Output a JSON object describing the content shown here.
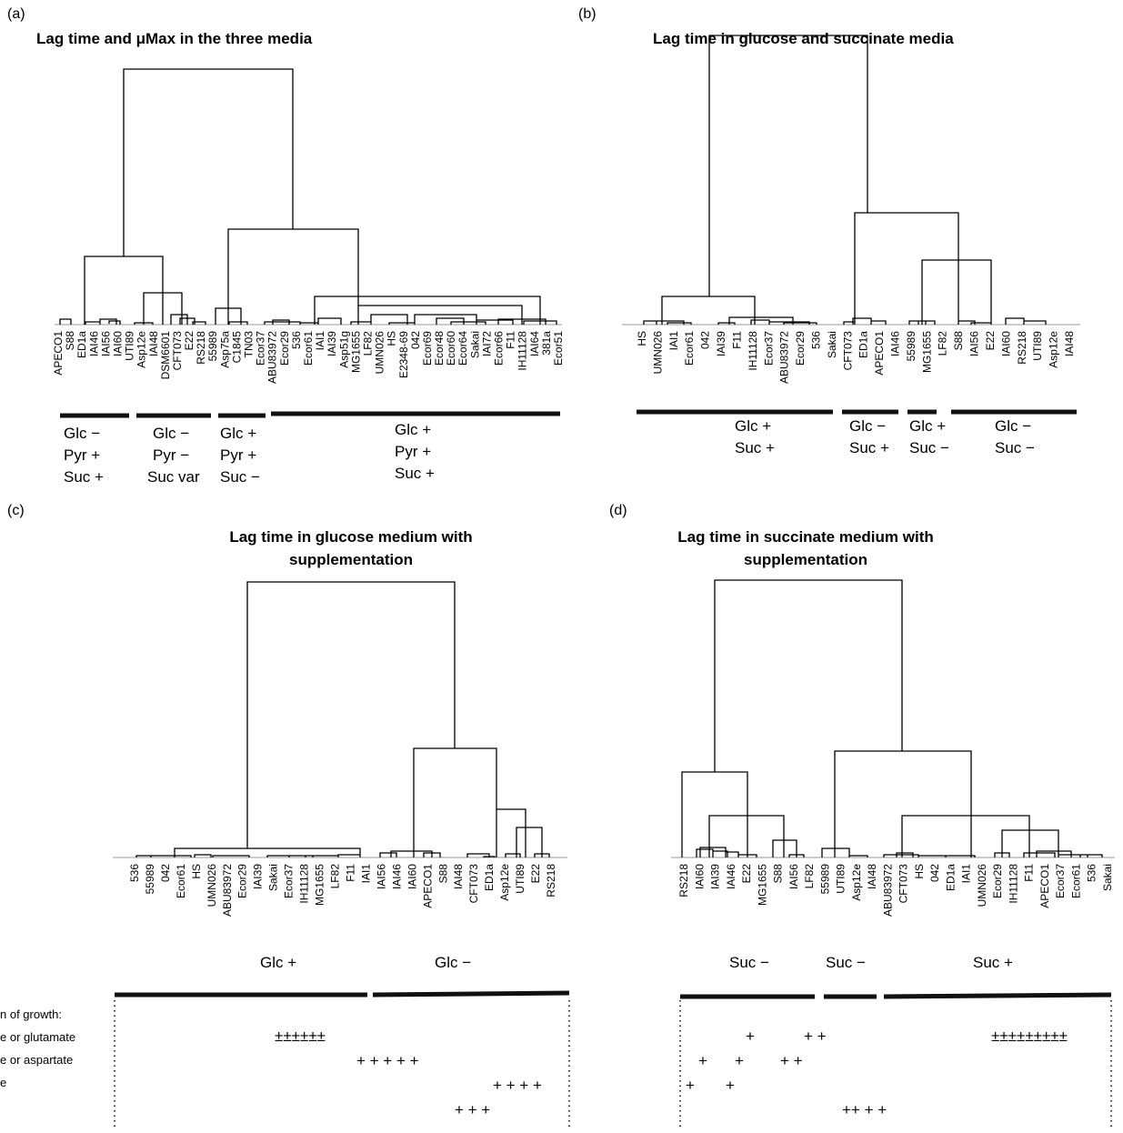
{
  "panels": [
    {
      "id": "a",
      "letter": "(a)",
      "title": [
        "Lag time and μMax in the three media"
      ],
      "leaves": [
        "APECO1",
        "S88",
        "ED1a",
        "IAI46",
        "IAI56",
        "IAI60",
        "UTI89",
        "Asp12e",
        "IAI48",
        "DSM6601",
        "CFT073",
        "E22",
        "RS218",
        "55989",
        "Asp75a",
        "C1845",
        "TN03",
        "Ecor37",
        "ABU83972",
        "Ecor29",
        "536",
        "Ecor61",
        "IAI1",
        "IAI39",
        "Asp51g",
        "MG1655",
        "LF82",
        "UMN026",
        "HS",
        "E2348-69",
        "042",
        "Ecor69",
        "Ecor48",
        "Ecor60",
        "Ecor64",
        "Sakai",
        "IAI72",
        "Ecor66",
        "F11",
        "IH11128",
        "IAI64",
        "381a",
        "Ecor51"
      ],
      "groups": [
        {
          "lines": [
            "Glc −",
            "Pyr +",
            "Suc +"
          ]
        },
        {
          "lines": [
            "Glc −",
            "Pyr −",
            "Suc var"
          ]
        },
        {
          "lines": [
            "Glc +",
            "Pyr +",
            "Suc −"
          ]
        },
        {
          "lines": [
            "Glc +",
            "Pyr +",
            "Suc +"
          ]
        }
      ]
    },
    {
      "id": "b",
      "letter": "(b)",
      "title": [
        "Lag time in glucose and succinate media"
      ],
      "leaves": [
        "HS",
        "UMN026",
        "IAI1",
        "Ecor61",
        "042",
        "IAI39",
        "F11",
        "IH11128",
        "Ecor37",
        "ABU83972",
        "Ecor29",
        "536",
        "Sakai",
        "CFT073",
        "ED1a",
        "APECO1",
        "IAI46",
        "55989",
        "MG1655",
        "LF82",
        "S88",
        "IAI56",
        "E22",
        "IAI60",
        "RS218",
        "UTI89",
        "Asp12e",
        "IAI48"
      ],
      "groups": [
        {
          "lines": [
            "Glc +",
            "Suc +"
          ]
        },
        {
          "lines": [
            "Glc −",
            "Suc +"
          ]
        },
        {
          "lines": [
            "Glc +",
            "Suc −"
          ]
        },
        {
          "lines": [
            "Glc −",
            "Suc −"
          ]
        }
      ]
    },
    {
      "id": "c",
      "letter": "(c)",
      "title": [
        "Lag time in glucose medium with",
        "supplementation"
      ],
      "leaves": [
        "536",
        "55989",
        "042",
        "Ecor61",
        "HS",
        "UMN026",
        "ABU83972",
        "Ecor29",
        "IAI39",
        "Sakai",
        "Ecor37",
        "IH11128",
        "MG1655",
        "LF82",
        "F11",
        "IAI1",
        "IAI56",
        "IAI46",
        "IAI60",
        "APECO1",
        "S88",
        "IAI48",
        "CFT073",
        "ED1a",
        "Asp12e",
        "UTI89",
        "E22",
        "RS218"
      ],
      "groups": [
        {
          "lines": [
            "Glc +"
          ]
        },
        {
          "lines": [
            "Glc −"
          ]
        }
      ]
    },
    {
      "id": "d",
      "letter": "(d)",
      "title": [
        "Lag time in succinate medium with",
        "supplementation"
      ],
      "leaves": [
        "RS218",
        "IAI60",
        "IAI39",
        "IAI46",
        "E22",
        "MG1655",
        "S88",
        "IAI56",
        "LF82",
        "55989",
        "UTI89",
        "Asp12e",
        "IAI48",
        "ABU83972",
        "CFT073",
        "HS",
        "042",
        "ED1a",
        "IAI1",
        "UMN026",
        "Ecor29",
        "IH11128",
        "F11",
        "APECO1",
        "Ecor37",
        "Ecor61",
        "536",
        "Sakai"
      ],
      "groups": [
        {
          "lines": [
            "Suc −"
          ]
        },
        {
          "lines": [
            "Suc −"
          ]
        },
        {
          "lines": [
            "Suc +"
          ]
        }
      ]
    }
  ],
  "legend": {
    "labels": [
      "n of growth:",
      "e or glutamate",
      "e or aspartate",
      "e"
    ]
  },
  "supplement_symbols": {
    "c": [
      {
        "text": "±±±±±±"
      },
      {
        "text": "+ + + + +"
      },
      {
        "text": "+ + + +"
      },
      {
        "text": "+ + +"
      }
    ],
    "d": [
      {
        "text": "+"
      },
      {
        "text": "+ +"
      },
      {
        "text": "±±±±±±±±±"
      },
      {
        "text": "+"
      },
      {
        "text": "+"
      },
      {
        "text": "+ +"
      },
      {
        "text": "+"
      },
      {
        "text": "+"
      },
      {
        "text": "++ + +"
      }
    ]
  }
}
